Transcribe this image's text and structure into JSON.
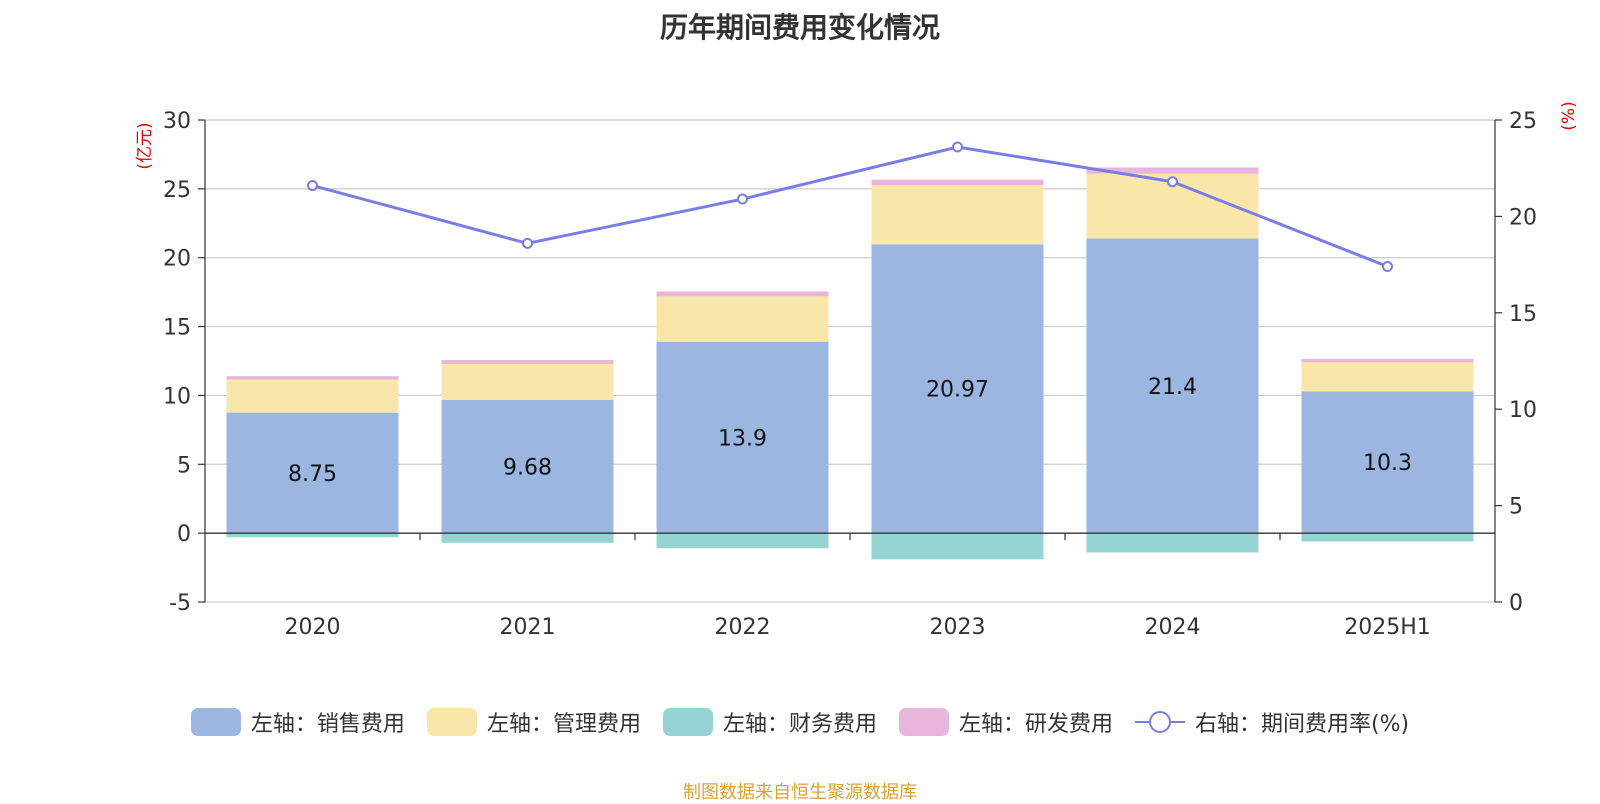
{
  "chart_data": {
    "type": "bar",
    "title": "历年期间费用变化情况",
    "categories": [
      "2020",
      "2021",
      "2022",
      "2023",
      "2024",
      "2025H1"
    ],
    "left_axis": {
      "label": "(亿元)",
      "ylim": [
        -5,
        30
      ],
      "ticks": [
        -5,
        0,
        5,
        10,
        15,
        20,
        25,
        30
      ]
    },
    "right_axis": {
      "label": "(%)",
      "ylim": [
        0,
        25
      ],
      "ticks": [
        0,
        5,
        10,
        15,
        20,
        25
      ]
    },
    "series": [
      {
        "name": "左轴：销售费用",
        "type": "bar",
        "axis": "left",
        "color": "#9bb7e1",
        "values": [
          8.75,
          9.68,
          13.9,
          20.97,
          21.4,
          10.3
        ],
        "labels": [
          "8.75",
          "9.68",
          "13.9",
          "20.97",
          "21.4",
          "10.3"
        ]
      },
      {
        "name": "左轴：管理费用",
        "type": "bar",
        "axis": "left",
        "color": "#f8e7a8",
        "values": [
          2.4,
          2.6,
          3.3,
          4.3,
          4.7,
          2.1
        ]
      },
      {
        "name": "左轴：财务费用",
        "type": "bar",
        "axis": "left",
        "color": "#96d4d4",
        "values": [
          -0.3,
          -0.7,
          -1.1,
          -1.9,
          -1.4,
          -0.6
        ]
      },
      {
        "name": "左轴：研发费用",
        "type": "bar",
        "axis": "left",
        "color": "#e8b6da",
        "values": [
          0.25,
          0.3,
          0.35,
          0.4,
          0.45,
          0.25
        ]
      },
      {
        "name": "右轴：期间费用率(%)",
        "type": "line",
        "axis": "right",
        "color": "#7b7de7",
        "values": [
          21.6,
          18.6,
          20.9,
          23.6,
          21.8,
          17.4
        ]
      }
    ],
    "grid": true,
    "legend_position": "bottom"
  },
  "source_note": "制图数据来自恒生聚源数据库",
  "colors": {
    "axis_label": "#e60000",
    "grid": "#cccccc",
    "text": "#333333"
  }
}
